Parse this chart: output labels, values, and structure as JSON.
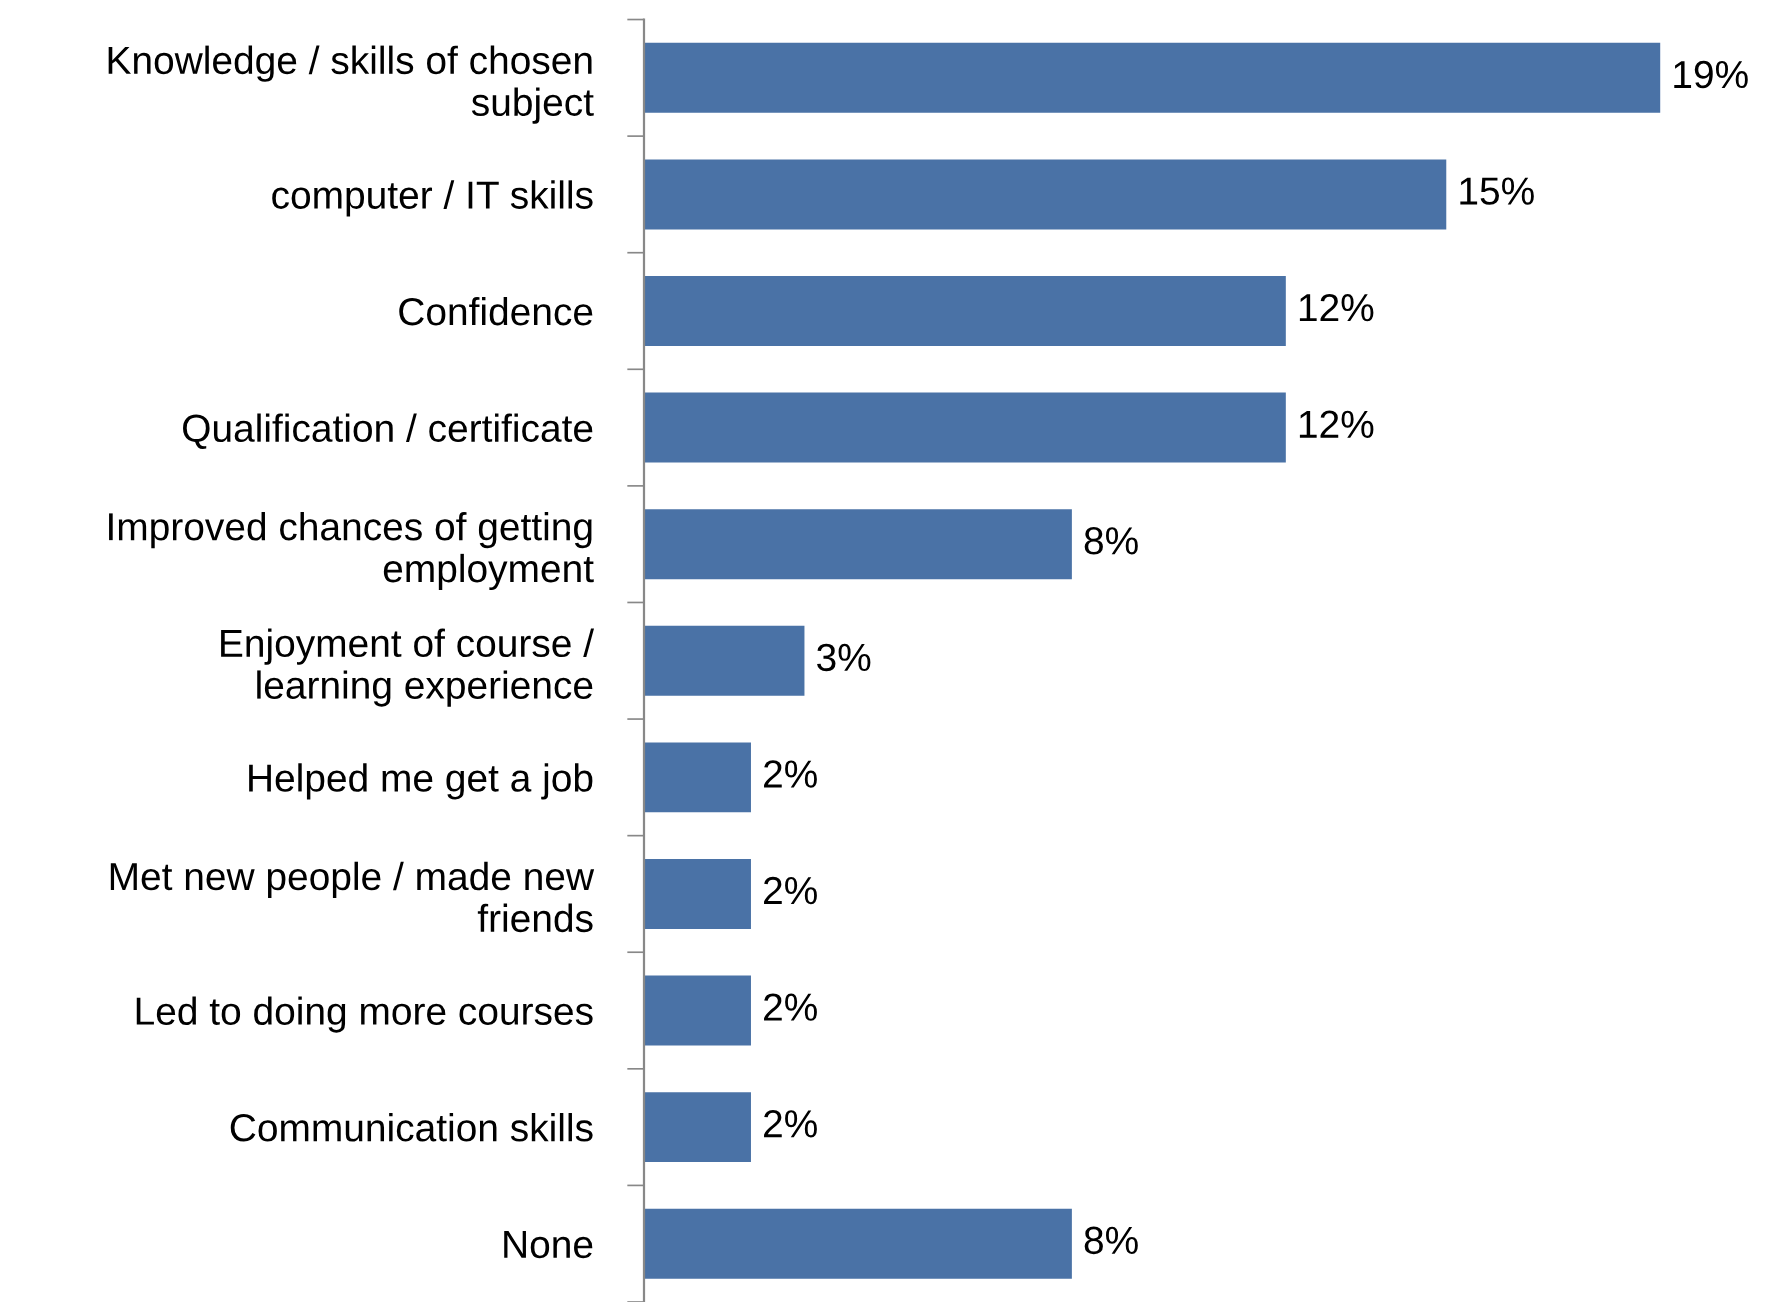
{
  "chart_data": {
    "type": "bar",
    "orientation": "horizontal",
    "categories": [
      "Knowledge / skills of chosen\nsubject",
      "computer / IT skills",
      "Confidence",
      "Qualification / certificate",
      "Improved chances of getting\nemployment",
      "Enjoyment of course /\nlearning experience",
      "Helped me get a job",
      "Met new people / made new\nfriends",
      "Led to doing more courses",
      "Communication skills",
      "None"
    ],
    "values": [
      19,
      15,
      12,
      12,
      8,
      3,
      2,
      2,
      2,
      2,
      8
    ],
    "value_labels": [
      "19%",
      "15%",
      "12%",
      "12%",
      "8%",
      "3%",
      "2%",
      "2%",
      "2%",
      "2%",
      "8%"
    ],
    "color": "#4a72a6",
    "grid": false,
    "legend": false
  }
}
